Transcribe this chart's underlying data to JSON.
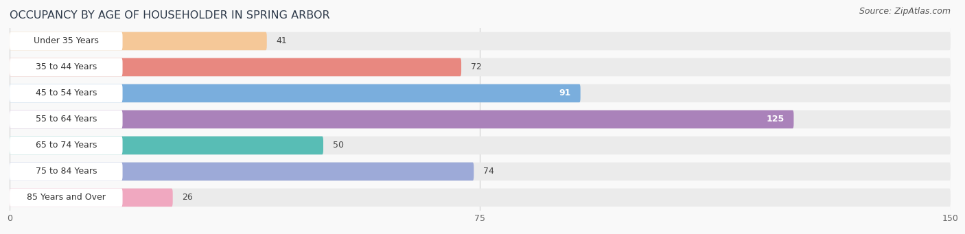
{
  "title": "OCCUPANCY BY AGE OF HOUSEHOLDER IN SPRING ARBOR",
  "source": "Source: ZipAtlas.com",
  "categories": [
    "Under 35 Years",
    "35 to 44 Years",
    "45 to 54 Years",
    "55 to 64 Years",
    "65 to 74 Years",
    "75 to 84 Years",
    "85 Years and Over"
  ],
  "values": [
    41,
    72,
    91,
    125,
    50,
    74,
    26
  ],
  "bar_colors": [
    "#f5c898",
    "#e88880",
    "#7aaedd",
    "#aa82ba",
    "#58bdb5",
    "#9daad8",
    "#f0a8c0"
  ],
  "bar_bg_color": "#ebebeb",
  "label_bg_color": "#ffffff",
  "xlim": [
    0,
    150
  ],
  "xticks": [
    0,
    75,
    150
  ],
  "title_fontsize": 11.5,
  "source_fontsize": 9,
  "label_fontsize": 9,
  "value_fontsize": 9,
  "bar_height": 0.7,
  "background_color": "#f9f9f9",
  "title_color": "#2e3a4a",
  "source_color": "#555555",
  "label_color": "#333333",
  "value_color_inside": "#ffffff",
  "value_color_outside": "#444444",
  "value_threshold": 85
}
